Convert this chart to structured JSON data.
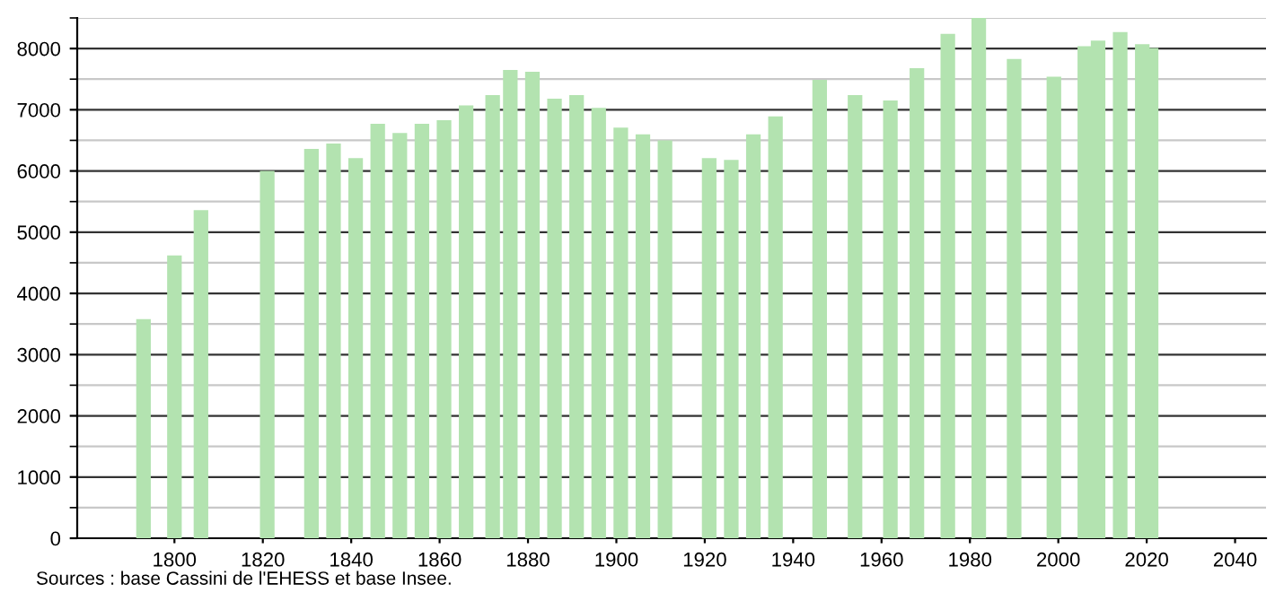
{
  "chart_data": {
    "type": "bar",
    "x": [
      1793,
      1800,
      1806,
      1821,
      1831,
      1836,
      1841,
      1846,
      1851,
      1856,
      1861,
      1866,
      1872,
      1876,
      1881,
      1886,
      1891,
      1896,
      1901,
      1906,
      1911,
      1921,
      1926,
      1931,
      1936,
      1946,
      1954,
      1962,
      1968,
      1975,
      1982,
      1990,
      1999,
      2006,
      2009,
      2014,
      2019,
      2021
    ],
    "values": [
      3580,
      4620,
      5360,
      6000,
      6360,
      6450,
      6210,
      6770,
      6620,
      6770,
      6830,
      7070,
      7240,
      7650,
      7620,
      7180,
      7240,
      7030,
      6710,
      6600,
      6500,
      6210,
      6180,
      6600,
      6890,
      7490,
      7240,
      7150,
      7680,
      8240,
      8500,
      7830,
      7540,
      8040,
      8130,
      8270,
      8070,
      8010
    ],
    "color": "#b3e3b0",
    "xlim": [
      1778,
      2047
    ],
    "xticks": [
      1800,
      1820,
      1840,
      1860,
      1880,
      1900,
      1920,
      1940,
      1960,
      1980,
      2000,
      2020,
      2040
    ],
    "ylim": [
      0,
      8500
    ],
    "yticks": [
      0,
      {
        "value": 500,
        "label": null
      },
      1000,
      {
        "value": 1500,
        "label": null
      },
      2000,
      {
        "value": 2500,
        "label": null
      },
      3000,
      {
        "value": 3500,
        "label": null
      },
      4000,
      {
        "value": 4500,
        "label": null
      },
      5000,
      {
        "value": 5500,
        "label": null
      },
      6000,
      {
        "value": 6500,
        "label": null
      },
      7000,
      {
        "value": 7500,
        "label": null
      },
      8000,
      {
        "value": 8500,
        "label": null
      }
    ],
    "grid": "y",
    "annotations": [
      "Sources : base Cassini de l'EHESS et base Insee."
    ]
  }
}
